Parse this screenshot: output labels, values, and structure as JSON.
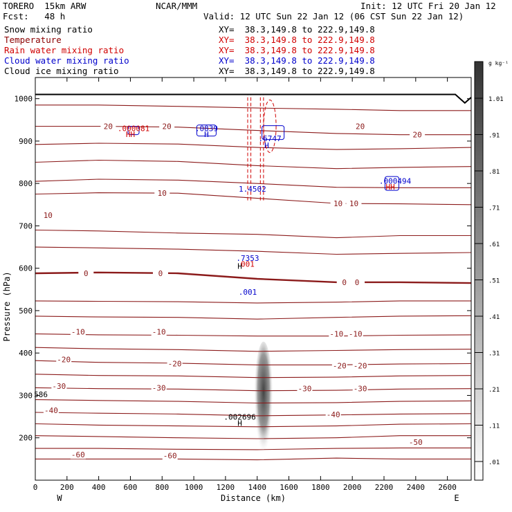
{
  "header": {
    "model": "TORERO  15km ARW",
    "org": "NCAR/MMM",
    "init": "Init: 12 UTC Fri 20 Jan 12",
    "fcst": "Fcst:   48 h",
    "valid": "Valid: 12 UTC Sun 22 Jan 12 (06 CST Sun 22 Jan 12)",
    "fields": [
      {
        "label": "Snow mixing ratio",
        "xy": "XY=  38.3,149.8 to 222.9,149.8",
        "color": "#000000"
      },
      {
        "label": "Temperature",
        "xy": "XY=  38.3,149.8 to 222.9,149.8",
        "color": "#8b0000"
      },
      {
        "label": "Rain water mixing ratio",
        "xy": "XY=  38.3,149.8 to 222.9,149.8",
        "color": "#d00000"
      },
      {
        "label": "Cloud water mixing ratio",
        "xy": "XY=  38.3,149.8 to 222.9,149.8",
        "color": "#0000cc"
      },
      {
        "label": "Cloud ice mixing ratio",
        "xy": "XY=  38.3,149.8 to 222.9,149.8",
        "color": "#000000"
      }
    ]
  },
  "chart_data": {
    "type": "cross-section",
    "xlabel": "Distance (km)",
    "ylabel": "Pressure (hPa)",
    "xlim": [
      0,
      2750
    ],
    "ylim": [
      1050,
      100
    ],
    "x_ticks": [
      "0",
      "200",
      "400",
      "600",
      "800",
      "1000",
      "1200",
      "1400",
      "1600",
      "1800",
      "2000",
      "2200",
      "2400",
      "2600"
    ],
    "y_ticks": [
      "200",
      "300",
      "400",
      "500",
      "600",
      "700",
      "800",
      "900",
      "1000"
    ],
    "left_end_label": "W",
    "right_end_label": "E",
    "colorbar": {
      "unit": "g kg⁻¹",
      "labels": [
        "1.01",
        ".91",
        ".81",
        ".71",
        ".61",
        ".51",
        ".41",
        ".31",
        ".21",
        ".11",
        ".01"
      ]
    },
    "temperature_labels": [
      {
        "text": "-60",
        "x": 270,
        "p": 160
      },
      {
        "text": "-60",
        "x": 850,
        "p": 158
      },
      {
        "text": "-50",
        "x": 2400,
        "p": 190
      },
      {
        "text": "-40",
        "x": 100,
        "p": 265
      },
      {
        "text": "-40",
        "x": 1880,
        "p": 255
      },
      {
        "text": "-30",
        "x": 150,
        "p": 322
      },
      {
        "text": "-30",
        "x": 780,
        "p": 318
      },
      {
        "text": "-30",
        "x": 1700,
        "p": 316
      },
      {
        "text": "-30",
        "x": 2050,
        "p": 316
      },
      {
        "text": "-20",
        "x": 180,
        "p": 385
      },
      {
        "text": "-20",
        "x": 880,
        "p": 375
      },
      {
        "text": "-20",
        "x": 1920,
        "p": 370
      },
      {
        "text": "-20",
        "x": 2050,
        "p": 370
      },
      {
        "text": "-10",
        "x": 270,
        "p": 450
      },
      {
        "text": "-10",
        "x": 780,
        "p": 450
      },
      {
        "text": "-10",
        "x": 1900,
        "p": 445
      },
      {
        "text": "-10",
        "x": 2020,
        "p": 445
      },
      {
        "text": "0",
        "x": 320,
        "p": 588
      },
      {
        "text": "0",
        "x": 790,
        "p": 588
      },
      {
        "text": "0",
        "x": 1950,
        "p": 567
      },
      {
        "text": "0",
        "x": 2030,
        "p": 567
      },
      {
        "text": "10",
        "x": 80,
        "p": 725
      },
      {
        "text": "10",
        "x": 800,
        "p": 777
      },
      {
        "text": "10",
        "x": 1910,
        "p": 753
      },
      {
        "text": "10",
        "x": 2010,
        "p": 753
      },
      {
        "text": "20",
        "x": 460,
        "p": 935
      },
      {
        "text": "20",
        "x": 830,
        "p": 935
      },
      {
        "text": "20",
        "x": 2050,
        "p": 935
      },
      {
        "text": "20",
        "x": 2410,
        "p": 915
      }
    ],
    "extrema_labels": [
      {
        "text": "H",
        "x": 1290,
        "p": 235,
        "color": "#000000"
      },
      {
        "text": ".002696",
        "x": 1290,
        "p": 249,
        "color": "#000000"
      },
      {
        "text": ".001",
        "x": 1340,
        "p": 544,
        "color": "#0000cc"
      },
      {
        "text": "H",
        "x": 1290,
        "p": 605,
        "color": "#000000"
      },
      {
        "text": "001",
        "x": 1340,
        "p": 610,
        "color": "#d00000"
      },
      {
        "text": ".7353",
        "x": 1340,
        "p": 624,
        "color": "#0000cc"
      },
      {
        "text": "1.4502",
        "x": 1370,
        "p": 787,
        "color": "#0000cc"
      },
      {
        "text": "HH",
        "x": 2240,
        "p": 792,
        "color": "#d00000"
      },
      {
        "text": ".000494",
        "x": 2270,
        "p": 806,
        "color": "#0000cc"
      },
      {
        "text": "HH",
        "x": 600,
        "p": 916,
        "color": "#d00000"
      },
      {
        "text": ".000081",
        "x": 620,
        "p": 930,
        "color": "#d00000"
      },
      {
        "text": "H",
        "x": 1080,
        "p": 916,
        "color": "#0000cc"
      },
      {
        "text": ".0839",
        "x": 1080,
        "p": 930,
        "color": "#0000cc"
      },
      {
        "text": "H",
        "x": 1460,
        "p": 890,
        "color": "#0000cc"
      },
      {
        "text": ".6747",
        "x": 1480,
        "p": 906,
        "color": "#0000cc"
      },
      {
        "text": "586",
        "x": 35,
        "p": 302,
        "color": "#000000"
      }
    ],
    "isotherms": [
      {
        "p": [
          150,
          150,
          150,
          148,
          152,
          150,
          150
        ],
        "thick": false
      },
      {
        "p": [
          175,
          175,
          173,
          172,
          175,
          176,
          176
        ],
        "thick": false
      },
      {
        "p": [
          205,
          203,
          200,
          198,
          200,
          205,
          205
        ],
        "thick": false
      },
      {
        "p": [
          233,
          230,
          228,
          226,
          228,
          232,
          233
        ],
        "thick": false
      },
      {
        "p": [
          260,
          258,
          256,
          252,
          254,
          256,
          257
        ],
        "thick": false
      },
      {
        "p": [
          290,
          288,
          286,
          282,
          283,
          286,
          287
        ],
        "thick": false
      },
      {
        "p": [
          318,
          316,
          315,
          311,
          312,
          315,
          316
        ],
        "thick": false
      },
      {
        "p": [
          350,
          347,
          346,
          342,
          343,
          346,
          347
        ],
        "thick": false
      },
      {
        "p": [
          382,
          378,
          376,
          372,
          372,
          374,
          375
        ],
        "thick": false
      },
      {
        "p": [
          413,
          410,
          408,
          404,
          406,
          408,
          409
        ],
        "thick": false
      },
      {
        "p": [
          445,
          443,
          442,
          440,
          440,
          442,
          443
        ],
        "thick": false
      },
      {
        "p": [
          487,
          485,
          484,
          480,
          484,
          487,
          488
        ],
        "thick": false
      },
      {
        "p": [
          523,
          522,
          521,
          518,
          520,
          523,
          523
        ],
        "thick": false
      },
      {
        "p": [
          588,
          590,
          588,
          575,
          567,
          567,
          565
        ],
        "thick": true
      },
      {
        "p": [
          650,
          648,
          645,
          640,
          633,
          635,
          637
        ],
        "thick": false
      },
      {
        "p": [
          690,
          688,
          683,
          680,
          672,
          677,
          677
        ],
        "thick": false
      },
      {
        "p": [
          775,
          778,
          777,
          765,
          753,
          752,
          750
        ],
        "thick": false
      },
      {
        "p": [
          805,
          810,
          808,
          800,
          791,
          790,
          790
        ],
        "thick": false
      },
      {
        "p": [
          850,
          855,
          852,
          842,
          835,
          838,
          840
        ],
        "thick": false
      },
      {
        "p": [
          892,
          895,
          893,
          885,
          880,
          882,
          885
        ],
        "thick": false
      },
      {
        "p": [
          935,
          935,
          933,
          925,
          918,
          915,
          915
        ],
        "thick": false
      },
      {
        "p": [
          985,
          985,
          982,
          978,
          975,
          972,
          972
        ],
        "thick": false
      }
    ],
    "isotherm_x": [
      0,
      400,
      900,
      1400,
      1900,
      2300,
      2750
    ]
  }
}
